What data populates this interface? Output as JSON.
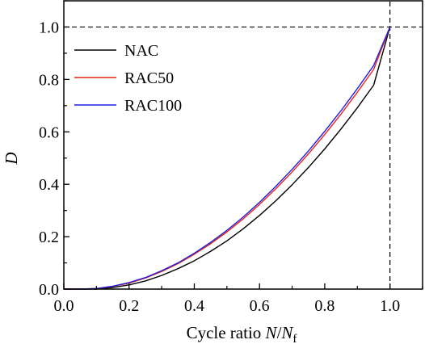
{
  "chart_data": {
    "type": "line",
    "xlabel": "Cycle ratio N/N_f",
    "xlabel_parts": {
      "prefix": "Cycle ratio ",
      "var": "N",
      "slash": "/",
      "var2": "N",
      "sub": "f"
    },
    "ylabel": "D",
    "xlim": [
      0.0,
      1.1
    ],
    "ylim": [
      0.0,
      1.1
    ],
    "xticks": [
      "0.0",
      "0.2",
      "0.4",
      "0.6",
      "0.8",
      "1.0"
    ],
    "yticks": [
      "0.0",
      "0.2",
      "0.4",
      "0.6",
      "0.8",
      "1.0"
    ],
    "grid": false,
    "legend_position": "top-left",
    "reference_lines": {
      "horizontal_y": 1.0,
      "vertical_x": 1.0,
      "style": "dashed"
    },
    "x": [
      0.0,
      0.05,
      0.1,
      0.15,
      0.2,
      0.25,
      0.3,
      0.35,
      0.4,
      0.45,
      0.5,
      0.55,
      0.6,
      0.65,
      0.7,
      0.75,
      0.8,
      0.85,
      0.9,
      0.95,
      1.0
    ],
    "series": [
      {
        "name": "NAC",
        "color": "#000000",
        "values": [
          0.0,
          0.0,
          0.0,
          0.006,
          0.016,
          0.031,
          0.052,
          0.078,
          0.108,
          0.144,
          0.184,
          0.23,
          0.281,
          0.337,
          0.398,
          0.464,
          0.535,
          0.611,
          0.692,
          0.778,
          1.0
        ]
      },
      {
        "name": "RAC50",
        "color": "#e8231b",
        "values": [
          0.0,
          0.0,
          0.002,
          0.01,
          0.023,
          0.042,
          0.067,
          0.097,
          0.133,
          0.173,
          0.218,
          0.268,
          0.323,
          0.383,
          0.447,
          0.516,
          0.59,
          0.668,
          0.751,
          0.838,
          1.0
        ]
      },
      {
        "name": "RAC100",
        "color": "#1f1fe0",
        "values": [
          0.0,
          0.0,
          0.002,
          0.011,
          0.025,
          0.044,
          0.07,
          0.1,
          0.137,
          0.178,
          0.224,
          0.275,
          0.331,
          0.392,
          0.457,
          0.527,
          0.602,
          0.681,
          0.765,
          0.853,
          1.0
        ]
      }
    ]
  }
}
